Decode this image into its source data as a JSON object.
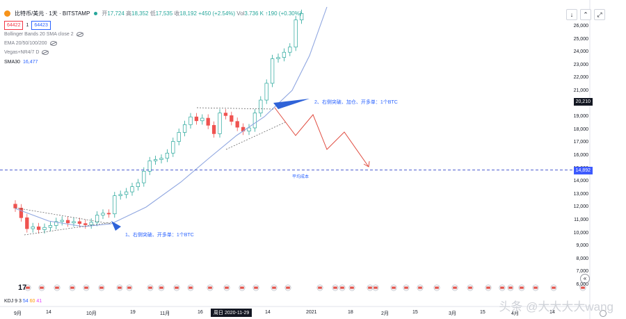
{
  "header": {
    "symbol": "比特币/美元 · 1天 · BITSTAMP",
    "ohlc_open_label": "开",
    "ohlc_open": "17,724",
    "ohlc_high_label": "高",
    "ohlc_high": "18,352",
    "ohlc_low_label": "低",
    "ohlc_low": "17,535",
    "ohlc_close_label": "收",
    "ohlc_close": "18,192",
    "ohlc_change": "+450 (+2.54%)",
    "volume_label": "Vol",
    "volume": "3.736 K",
    "extra": "↑190 (+0.30%)",
    "bid": "64422",
    "spread": "1",
    "ask": "64423"
  },
  "indicators": [
    {
      "label": "Bollinger Bands 20 SMA close 2"
    },
    {
      "label": "EMA 20/50/100/200"
    },
    {
      "label": "Vegas+NR4/7 D"
    }
  ],
  "ma": {
    "label": "SMA30",
    "value": "16,477"
  },
  "kdj": {
    "label": "KDJ 9 3",
    "v1": "54",
    "v2": "60",
    "v3": "41"
  },
  "buttons": {
    "down": "↓",
    "collapse": "⌃",
    "expand": "⤢"
  },
  "price_tags": {
    "current": "20,210",
    "avg": "14,892"
  },
  "annotations": {
    "first": "1、右侧突破、开多单：1个BTC",
    "second": "2、右侧突破、加仓、开多单：1个BTC",
    "avg_label": "平均成本"
  },
  "cursor_date": "周日 2020-11-29",
  "watermark": "头条 @大大大大wang",
  "colors": {
    "up": "#26a69a",
    "down": "#ef5350",
    "ma": "#8fa6e0",
    "arrow": "#2f63d8",
    "forecast": "#e04b3f",
    "dashed": "#4a5bd0"
  },
  "chart_data": {
    "type": "candlestick",
    "title": "比特币/美元 · 1天 · BITSTAMP",
    "ylim": [
      6000,
      27500
    ],
    "yticks": [
      26000,
      25000,
      24000,
      23000,
      22000,
      21000,
      20000,
      19000,
      18000,
      17000,
      16000,
      15000,
      14000,
      13000,
      12000,
      11000,
      10000,
      9000,
      8000,
      7000,
      6000
    ],
    "xticks": [
      "9月",
      "14",
      "10月",
      "19",
      "11月",
      "16",
      "14",
      "2021",
      "18",
      "2月",
      "15",
      "3月",
      "15",
      "4月",
      "14"
    ],
    "avg_cost": 14892,
    "current_price": 20210,
    "series": [
      {
        "name": "SMA30",
        "points": [
          [
            "9月",
            11000
          ],
          [
            "14",
            10700
          ],
          [
            "10月",
            10750
          ],
          [
            "19",
            11300
          ],
          [
            "11月",
            12900
          ],
          [
            "16",
            15000
          ],
          [
            "14",
            18400
          ]
        ]
      }
    ],
    "candles_close": [
      11950,
      11200,
      10350,
      10500,
      10280,
      10450,
      10600,
      10900,
      11000,
      10800,
      10900,
      10750,
      10650,
      10850,
      11400,
      11550,
      11500,
      12900,
      13000,
      13200,
      13600,
      13900,
      14800,
      15600,
      15700,
      15800,
      16200,
      17100,
      17800,
      18400,
      19000,
      18700,
      18900,
      18350,
      17700,
      19300,
      19100,
      18650,
      18200,
      17900,
      18150,
      19300,
      20300,
      21600,
      23500,
      23600,
      24000,
      24400,
      26500,
      27000
    ]
  }
}
